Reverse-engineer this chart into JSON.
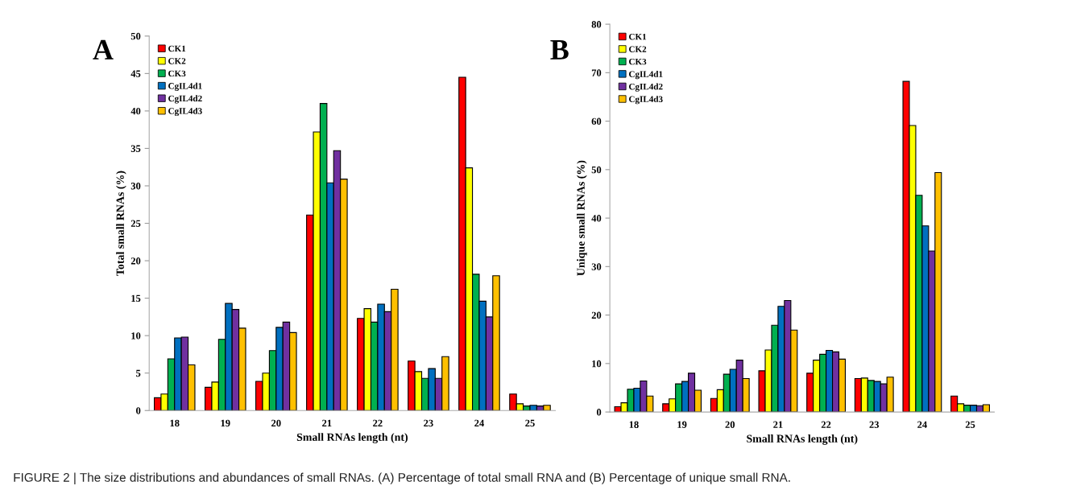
{
  "chart_data": [
    {
      "type": "bar",
      "xlabel": "Small RNAs length (nt)",
      "ylabel": "Total small RNAs (%)",
      "categories": [
        "18",
        "19",
        "20",
        "21",
        "22",
        "23",
        "24",
        "25"
      ],
      "series": [
        {
          "name": "CK1",
          "color": "#ff0000",
          "values": [
            1.7,
            3.1,
            3.9,
            26.1,
            12.3,
            6.6,
            44.5,
            2.2
          ]
        },
        {
          "name": "CK2",
          "color": "#ffff00",
          "values": [
            2.2,
            3.8,
            5.0,
            37.2,
            13.6,
            5.2,
            32.4,
            0.9
          ]
        },
        {
          "name": "CK3",
          "color": "#00b050",
          "values": [
            6.9,
            9.5,
            8.0,
            41.0,
            11.8,
            4.3,
            18.2,
            0.6
          ]
        },
        {
          "name": "CgIL4d1",
          "color": "#0070c0",
          "values": [
            9.7,
            14.3,
            11.1,
            30.4,
            14.2,
            5.6,
            14.6,
            0.7
          ]
        },
        {
          "name": "CgIL4d2",
          "color": "#7030a0",
          "values": [
            9.8,
            13.5,
            11.8,
            34.7,
            13.2,
            4.3,
            12.5,
            0.6
          ]
        },
        {
          "name": "CgIL4d3",
          "color": "#ffc000",
          "values": [
            6.1,
            11.0,
            10.4,
            30.9,
            16.2,
            7.2,
            18.0,
            0.7
          ]
        }
      ],
      "ylim": [
        0,
        50
      ],
      "yticks": [
        0,
        5,
        10,
        15,
        20,
        25,
        30,
        35,
        40,
        45,
        50
      ],
      "grid": false,
      "legend": "top left",
      "annotations": [
        "A",
        "FIGURE 2 | The size distributions and abundances of small RNAs. (A) Percentage of total small RNA and (B) Percentage of unique small RNA."
      ]
    },
    {
      "type": "bar",
      "xlabel": "Small RNAs length (nt)",
      "ylabel": "Unique small RNAs (%)",
      "categories": [
        "18",
        "19",
        "20",
        "21",
        "22",
        "23",
        "24",
        "25"
      ],
      "series": [
        {
          "name": "CK1",
          "color": "#ff0000",
          "values": [
            1.1,
            1.7,
            2.8,
            8.5,
            8.0,
            6.9,
            68.2,
            3.3
          ]
        },
        {
          "name": "CK2",
          "color": "#ffff00",
          "values": [
            1.9,
            2.7,
            4.6,
            12.8,
            10.7,
            7.0,
            59.1,
            1.7
          ]
        },
        {
          "name": "CK3",
          "color": "#00b050",
          "values": [
            4.7,
            5.8,
            7.8,
            17.9,
            11.9,
            6.5,
            44.7,
            1.4
          ]
        },
        {
          "name": "CgIL4d1",
          "color": "#0070c0",
          "values": [
            4.9,
            6.3,
            8.8,
            21.8,
            12.7,
            6.3,
            38.4,
            1.4
          ]
        },
        {
          "name": "CgIL4d2",
          "color": "#7030a0",
          "values": [
            6.4,
            8.0,
            10.7,
            23.0,
            12.4,
            5.8,
            33.2,
            1.3
          ]
        },
        {
          "name": "CgIL4d3",
          "color": "#ffc000",
          "values": [
            3.3,
            4.5,
            6.9,
            16.9,
            10.9,
            7.2,
            49.4,
            1.5
          ]
        }
      ],
      "ylim": [
        0,
        80
      ],
      "yticks": [
        0,
        10,
        20,
        30,
        40,
        50,
        60,
        70,
        80
      ],
      "grid": false,
      "legend": "top left",
      "annotations": [
        "B"
      ]
    }
  ]
}
